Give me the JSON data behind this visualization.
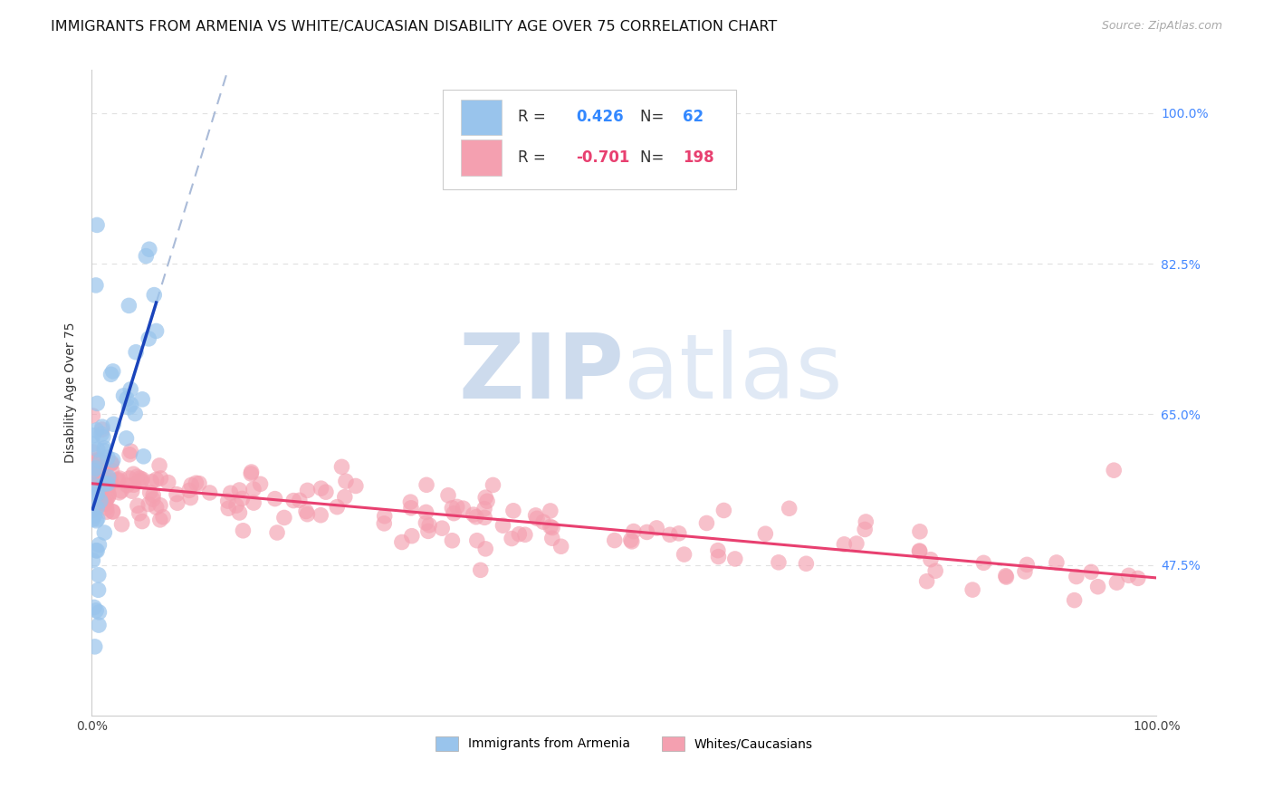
{
  "title": "IMMIGRANTS FROM ARMENIA VS WHITE/CAUCASIAN DISABILITY AGE OVER 75 CORRELATION CHART",
  "source": "Source: ZipAtlas.com",
  "ylabel": "Disability Age Over 75",
  "ytick_labels": [
    "47.5%",
    "65.0%",
    "82.5%",
    "100.0%"
  ],
  "ytick_values": [
    0.475,
    0.65,
    0.825,
    1.0
  ],
  "xrange": [
    0.0,
    1.0
  ],
  "yrange": [
    0.3,
    1.05
  ],
  "legend_blue_r": "0.426",
  "legend_blue_n": "62",
  "legend_pink_r": "-0.701",
  "legend_pink_n": "198",
  "blue_color": "#99c4ec",
  "pink_color": "#f4a0b0",
  "blue_line_color": "#1a44bb",
  "pink_line_color": "#e84070",
  "dashed_line_color": "#aabbd8",
  "watermark_zip_color": "#c5d5ea",
  "watermark_atlas_color": "#c8d8ee",
  "background_color": "#ffffff",
  "grid_color": "#e0e0e0",
  "title_fontsize": 11.5,
  "source_fontsize": 9,
  "legend_fontsize": 12,
  "axis_label_fontsize": 10,
  "tick_fontsize": 10
}
